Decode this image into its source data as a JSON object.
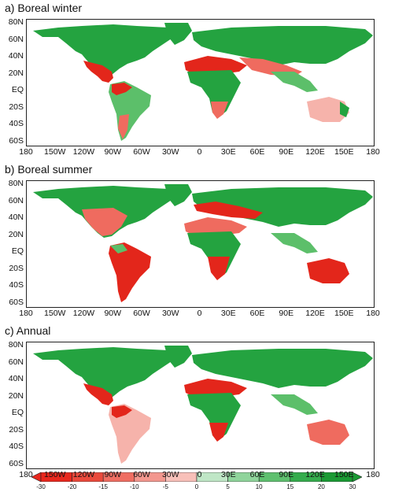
{
  "panels": [
    {
      "title": "a) Boreal winter",
      "scheme": "winter"
    },
    {
      "title": "b) Boreal summer",
      "scheme": "summer"
    },
    {
      "title": "c) Annual",
      "scheme": "annual"
    }
  ],
  "lat_labels": [
    "80N",
    "60N",
    "40N",
    "20N",
    "EQ",
    "20S",
    "40S",
    "60S"
  ],
  "lon_labels": [
    "180",
    "150W",
    "120W",
    "90W",
    "60W",
    "30W",
    "0",
    "30E",
    "60E",
    "90E",
    "120E",
    "150E",
    "180"
  ],
  "colorbar": {
    "labels": [
      "-30",
      "-20",
      "-15",
      "-10",
      "-5",
      "0",
      "5",
      "10",
      "15",
      "20",
      "30"
    ],
    "colors": [
      "#e8281e",
      "#ea4a3c",
      "#ef6e62",
      "#f3978e",
      "#f8c0b9",
      "#bfe6c6",
      "#8fd49b",
      "#5fc06f",
      "#35ac4d",
      "#1b9a34"
    ]
  },
  "colors": {
    "dark_red": "#e3261b",
    "mid_red": "#ef6b5f",
    "light_red": "#f6b3ab",
    "dark_green": "#24a340",
    "mid_green": "#5cbf6a",
    "light_green": "#a8dcb0"
  }
}
